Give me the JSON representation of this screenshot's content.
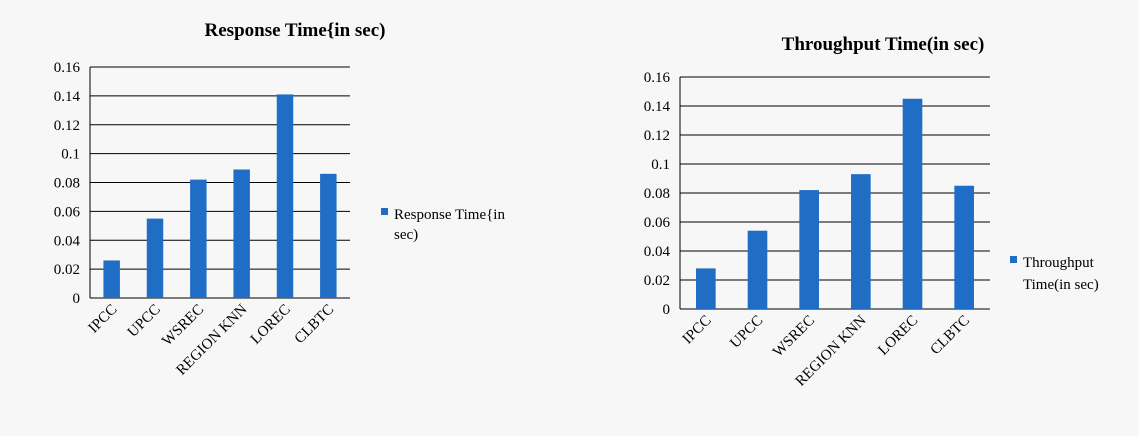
{
  "colors": {
    "bar": "#1f6dc4",
    "grid": "#000000",
    "background": "#f7f7f7"
  },
  "chart_data": [
    {
      "type": "bar",
      "title": "Response Time{in sec)",
      "categories": [
        "IPCC",
        "UPCC",
        "WSREC",
        "REGION KNN",
        "LOREC",
        "CLBTC"
      ],
      "series": [
        {
          "name": "Response Time{in sec)",
          "values": [
            0.026,
            0.055,
            0.082,
            0.089,
            0.141,
            0.086
          ]
        }
      ],
      "y_ticks": [
        "0",
        "0.02",
        "0.04",
        "0.06",
        "0.08",
        "0.1",
        "0.12",
        "0.14",
        "0.16"
      ],
      "ylim": [
        0,
        0.16
      ],
      "grid": true,
      "legend": "right"
    },
    {
      "type": "bar",
      "title": "Throughput Time(in sec)",
      "categories": [
        "IPCC",
        "UPCC",
        "WSREC",
        "REGION KNN",
        "LOREC",
        "CLBTC"
      ],
      "series": [
        {
          "name": "Throughput Time(in sec)",
          "values": [
            0.028,
            0.054,
            0.082,
            0.093,
            0.145,
            0.085
          ]
        }
      ],
      "y_ticks": [
        "0",
        "0.02",
        "0.04",
        "0.06",
        "0.08",
        "0.1",
        "0.12",
        "0.14",
        "0.16"
      ],
      "ylim": [
        0,
        0.16
      ],
      "grid": true,
      "legend": "right"
    }
  ]
}
